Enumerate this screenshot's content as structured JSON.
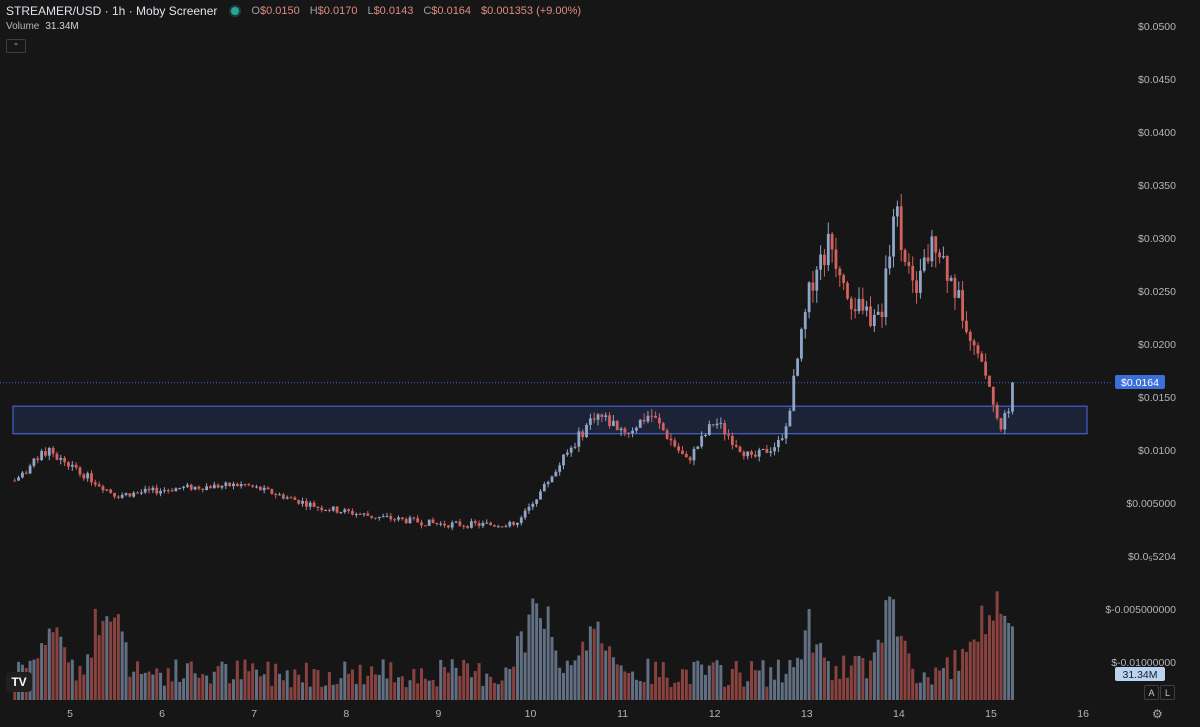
{
  "legend": {
    "symbol": "STREAMER/USD · 1h · Moby Screener",
    "open_label": "O",
    "open": "$0.0150",
    "high_label": "H",
    "high": "$0.0170",
    "low_label": "L",
    "low": "$0.0143",
    "close_label": "C",
    "close": "$0.0164",
    "change": "$0.001353 (+9.00%)"
  },
  "volume_legend": {
    "label": "Volume",
    "value": "31.34M"
  },
  "price_badge": "$0.0164",
  "volume_badge": "31.34M",
  "axis_buttons": {
    "auto": "A",
    "log": "L"
  },
  "icons": {
    "logo": "tradingview-logo-icon",
    "collapse": "chevron-up-icon",
    "settings": "gear-icon"
  },
  "colors": {
    "up": "#8fa6c8",
    "down": "#d2625c",
    "background": "#161616",
    "zone": "#3b5ec8",
    "badge": "#3d6fd8"
  },
  "chart_data": {
    "type": "candlestick",
    "x_ticks": [
      "5",
      "6",
      "7",
      "8",
      "9",
      "10",
      "11",
      "12",
      "13",
      "14",
      "15",
      "16"
    ],
    "y_ticks": [
      "$0.0500",
      "$0.0450",
      "$0.0400",
      "$0.0350",
      "$0.0300",
      "$0.0250",
      "$0.0200",
      "$0.0150",
      "$0.0100",
      "$0.005000",
      "$0.0₅5204",
      "$-0.005000000",
      "$-0.01000000"
    ],
    "ylim": [
      -0.0135,
      0.0527
    ],
    "last_price": 0.0164,
    "support_zone": [
      0.0116,
      0.0142
    ],
    "key_points": [
      {
        "day": 4.4,
        "price": 0.0072
      },
      {
        "day": 4.75,
        "price": 0.01
      },
      {
        "day": 5.5,
        "price": 0.0058
      },
      {
        "day": 6.2,
        "price": 0.0065
      },
      {
        "day": 6.9,
        "price": 0.0068
      },
      {
        "day": 7.7,
        "price": 0.0047
      },
      {
        "day": 8.3,
        "price": 0.0038
      },
      {
        "day": 9.0,
        "price": 0.0031
      },
      {
        "day": 9.85,
        "price": 0.003
      },
      {
        "day": 10.3,
        "price": 0.0085
      },
      {
        "day": 10.7,
        "price": 0.0135
      },
      {
        "day": 11.05,
        "price": 0.0118
      },
      {
        "day": 11.3,
        "price": 0.0135
      },
      {
        "day": 11.7,
        "price": 0.009
      },
      {
        "day": 12.0,
        "price": 0.0128
      },
      {
        "day": 12.4,
        "price": 0.0092
      },
      {
        "day": 12.75,
        "price": 0.011
      },
      {
        "day": 13.05,
        "price": 0.026
      },
      {
        "day": 13.25,
        "price": 0.0295
      },
      {
        "day": 13.5,
        "price": 0.024
      },
      {
        "day": 13.8,
        "price": 0.022
      },
      {
        "day": 13.95,
        "price": 0.0335
      },
      {
        "day": 14.15,
        "price": 0.025
      },
      {
        "day": 14.4,
        "price": 0.03
      },
      {
        "day": 14.7,
        "price": 0.023
      },
      {
        "day": 14.9,
        "price": 0.0185
      },
      {
        "day": 15.12,
        "price": 0.0122
      },
      {
        "day": 15.27,
        "price": 0.0164
      }
    ],
    "volume_peaks": [
      {
        "day": 4.8,
        "rel": 0.72
      },
      {
        "day": 5.4,
        "rel": 0.9
      },
      {
        "day": 9.95,
        "rel": 0.55
      },
      {
        "day": 10.1,
        "rel": 0.85
      },
      {
        "day": 10.7,
        "rel": 0.6
      },
      {
        "day": 13.0,
        "rel": 0.55
      },
      {
        "day": 13.9,
        "rel": 0.7
      },
      {
        "day": 14.9,
        "rel": 0.6
      },
      {
        "day": 15.12,
        "rel": 0.78
      }
    ]
  }
}
